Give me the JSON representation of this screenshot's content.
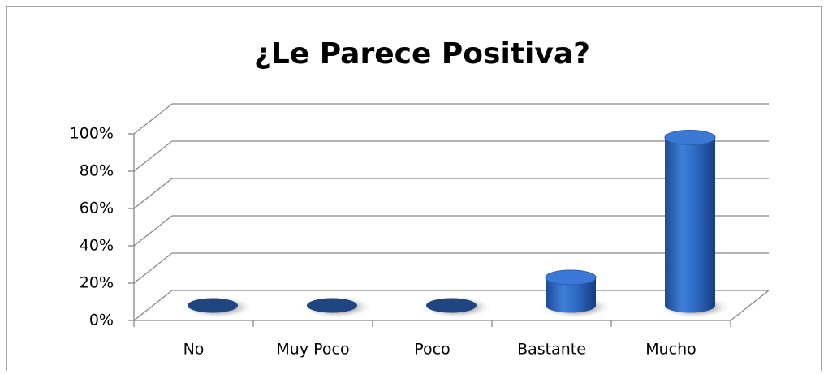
{
  "chart_data": {
    "type": "bar3d",
    "title": "¿Le Parece Positiva?",
    "categories": [
      "No",
      "Muy Poco",
      "Poco",
      "Bastante",
      "Mucho"
    ],
    "values": [
      0,
      0,
      0,
      15,
      90
    ],
    "color": "#2e6bc6",
    "ylim": [
      0,
      100
    ],
    "yticks": [
      {
        "value": 0,
        "label": "0%"
      },
      {
        "value": 20,
        "label": "20%"
      },
      {
        "value": 40,
        "label": "40%"
      },
      {
        "value": 60,
        "label": "60%"
      },
      {
        "value": 80,
        "label": "80%"
      },
      {
        "value": 100,
        "label": "100%"
      }
    ],
    "grid": true
  }
}
